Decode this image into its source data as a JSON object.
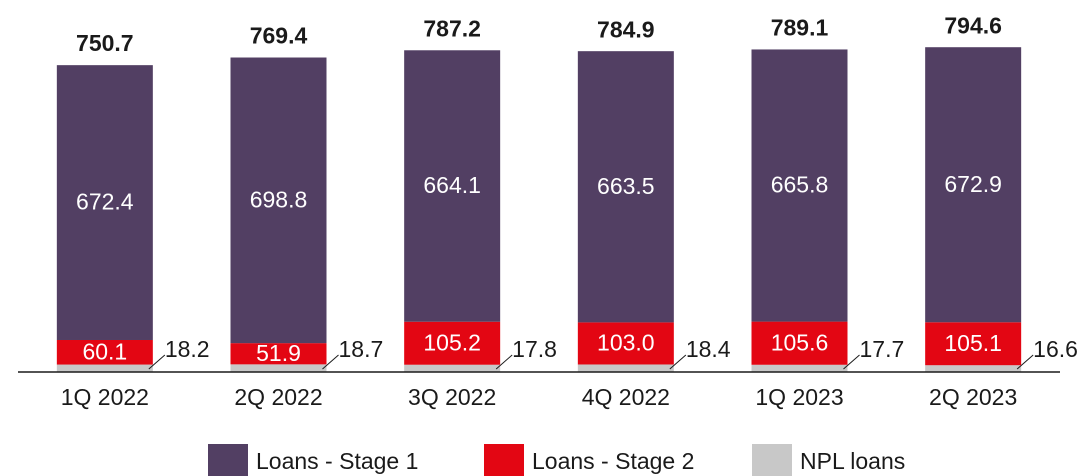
{
  "chart_data": {
    "type": "stacked_bar",
    "categories": [
      "1Q 2022",
      "2Q 2022",
      "3Q 2022",
      "4Q 2022",
      "1Q 2023",
      "2Q 2023"
    ],
    "series": [
      {
        "name": "NPL loans",
        "color": "#c8c8c8",
        "values": [
          18.2,
          18.7,
          17.8,
          18.4,
          17.7,
          16.6
        ]
      },
      {
        "name": "Loans - Stage 2",
        "color": "#e30613",
        "values": [
          60.1,
          51.9,
          105.2,
          103.0,
          105.6,
          105.1
        ],
        "value_labels": [
          "60.1",
          "51.9",
          "105.2",
          "103.0",
          "105.6",
          "105.1"
        ]
      },
      {
        "name": "Loans - Stage 1",
        "color": "#523f63",
        "values": [
          672.4,
          698.8,
          664.1,
          663.5,
          665.8,
          672.9
        ]
      }
    ],
    "totals": [
      750.7,
      769.4,
      787.2,
      784.9,
      789.1,
      794.6
    ],
    "ylim": [
      0,
      800
    ],
    "legend": [
      "Loans - Stage 1",
      "Loans - Stage 2",
      "NPL loans"
    ]
  }
}
